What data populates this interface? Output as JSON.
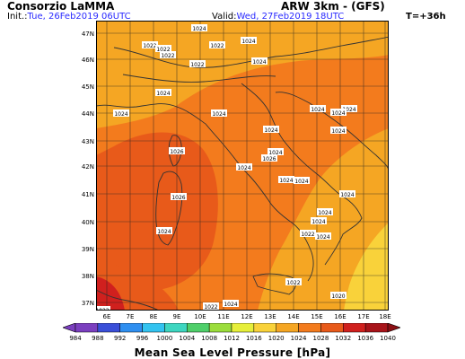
{
  "header": {
    "org": "Consorzio LaMMA",
    "init_label": "Init.:",
    "init_value": "Tue, 26Feb2019 06UTC",
    "model": "ARW 3km - (GFS)",
    "valid_label": "Valid:",
    "valid_value": "Wed, 27Feb2019 18UTC",
    "step": "T=+36h"
  },
  "map": {
    "lat_labels": [
      "47N",
      "46N",
      "45N",
      "44N",
      "43N",
      "42N",
      "41N",
      "40N",
      "39N",
      "38N",
      "37N"
    ],
    "lon_labels": [
      "6E",
      "7E",
      "8E",
      "9E",
      "10E",
      "11E",
      "12E",
      "13E",
      "14E",
      "15E",
      "16E",
      "17E",
      "18E"
    ],
    "isobar_labels": [
      "1024",
      "1022",
      "1022",
      "1022",
      "1022",
      "1024",
      "1022",
      "1024",
      "1024",
      "1024",
      "1024",
      "1024",
      "1024",
      "1024",
      "1024",
      "1024",
      "1024",
      "1024",
      "1026",
      "1024",
      "1024",
      "1026",
      "1026",
      "1024",
      "1024",
      "1024",
      "1024",
      "1022",
      "1024",
      "1022",
      "1022",
      "1022",
      "1024",
      "1020"
    ],
    "colors": {
      "c1020": "#f5a623",
      "c1024": "#f37b1d",
      "c1028": "#e85a1a",
      "c1032": "#d0201e",
      "c1016": "#f9d23a",
      "land": "#333333"
    }
  },
  "colorbar": {
    "ticks": [
      "984",
      "988",
      "992",
      "996",
      "1000",
      "1004",
      "1008",
      "1012",
      "1016",
      "1020",
      "1024",
      "1028",
      "1032",
      "1036",
      "1040"
    ],
    "colors": [
      "#7b3fbf",
      "#3a4fd8",
      "#2f8ff0",
      "#33c3f0",
      "#3ed6c0",
      "#4fcf6a",
      "#9bdd3c",
      "#e6ef3a",
      "#f9d23a",
      "#f5a623",
      "#f37b1d",
      "#e85a1a",
      "#d0201e",
      "#a8141a"
    ],
    "title": "Mean Sea Level Pressure [hPa]"
  }
}
